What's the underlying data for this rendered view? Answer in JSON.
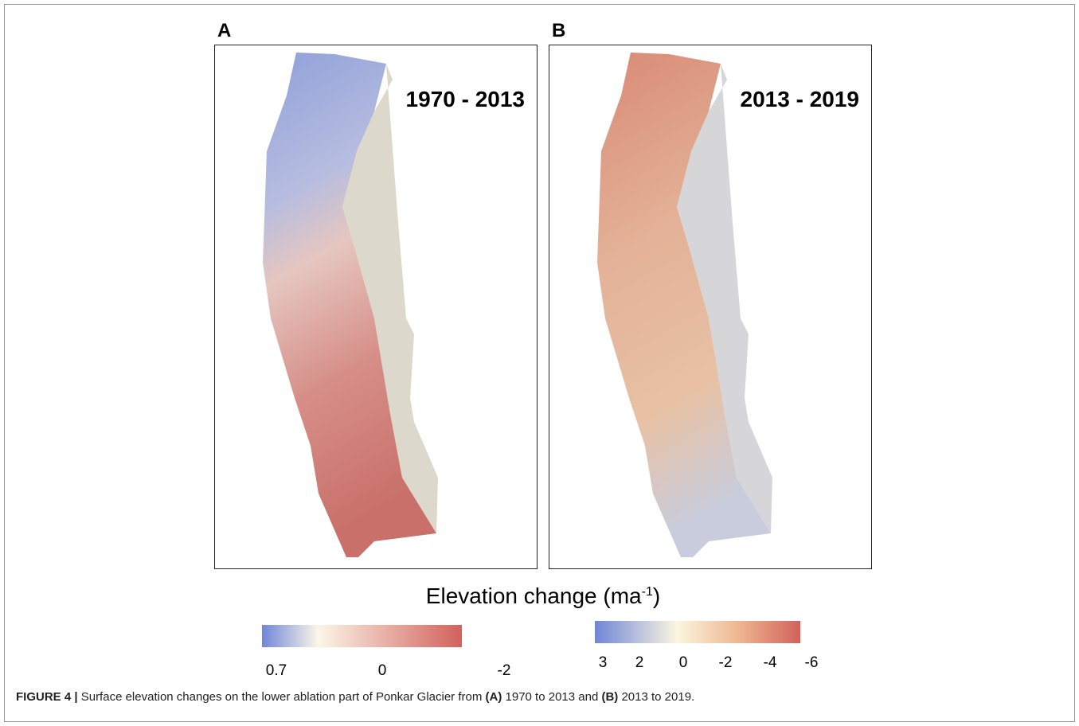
{
  "panels": [
    {
      "label": "A",
      "period": "1970 - 2013"
    },
    {
      "label": "B",
      "period": "2013 - 2019"
    }
  ],
  "legend_title": {
    "text": "Elevation change (ma",
    "superscript": "-1",
    "close": ")"
  },
  "colorbars": [
    {
      "ticks": [
        0.7,
        0,
        -2
      ]
    },
    {
      "ticks": [
        3,
        2,
        0,
        -2,
        -4,
        -6
      ]
    }
  ],
  "caption": {
    "label": "FIGURE 4 |",
    "part1": "Surface elevation changes on the lower ablation part of Ponkar Glacier from",
    "a": "(A)",
    "part2": "1970 to 2013 and",
    "b": "(B)",
    "part3": "2013 to 2019."
  }
}
